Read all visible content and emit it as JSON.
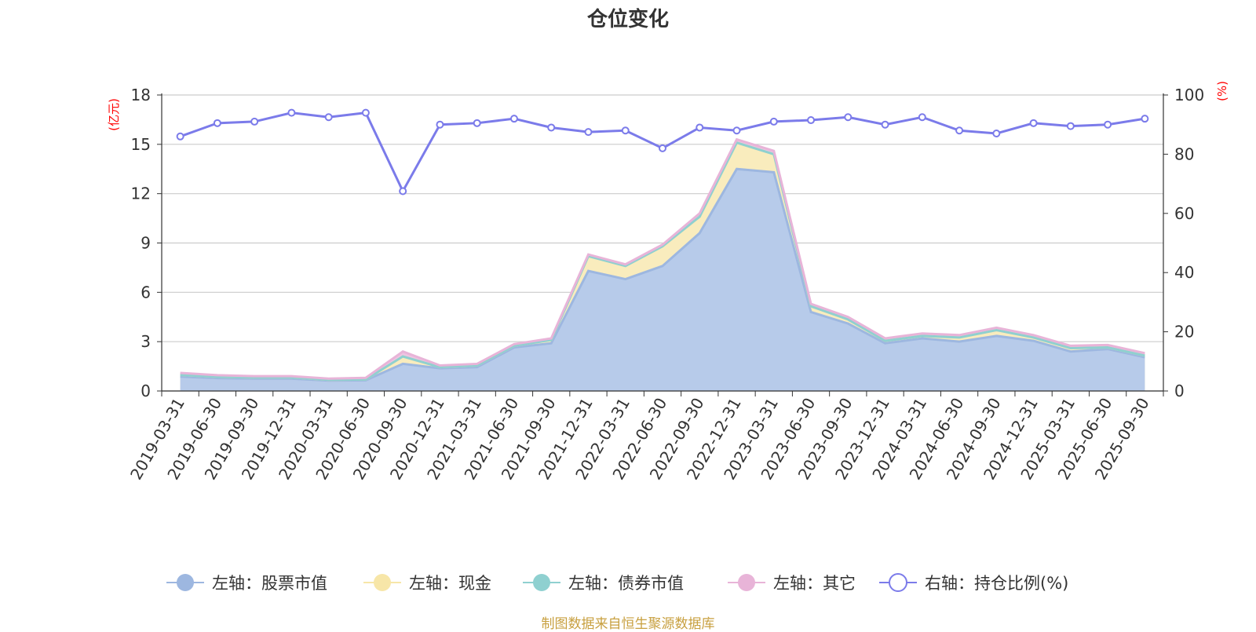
{
  "chart_data": {
    "type": "area",
    "title": "仓位变化",
    "left_axis_name": "(亿元)",
    "right_axis_name": "(%)",
    "left_ylim": [
      0,
      18
    ],
    "left_ticks": [
      0,
      3,
      6,
      9,
      12,
      15,
      18
    ],
    "right_ylim": [
      0,
      100
    ],
    "right_ticks": [
      0,
      20,
      40,
      60,
      80,
      100
    ],
    "categories": [
      "2019-03-31",
      "2019-06-30",
      "2019-09-30",
      "2019-12-31",
      "2020-03-31",
      "2020-06-30",
      "2020-09-30",
      "2020-12-31",
      "2021-03-31",
      "2021-06-30",
      "2021-09-30",
      "2021-12-31",
      "2022-03-31",
      "2022-06-30",
      "2022-09-30",
      "2022-12-31",
      "2023-03-31",
      "2023-06-30",
      "2023-09-30",
      "2023-12-31",
      "2024-03-31",
      "2024-06-30",
      "2024-09-30",
      "2024-12-31",
      "2025-03-31",
      "2025-06-30",
      "2025-09-30"
    ],
    "series": [
      {
        "name": "左轴：股票市值",
        "axis": "left",
        "stack": true,
        "color": "#9db7e0",
        "fill": "#b7cbea",
        "values": [
          0.88,
          0.78,
          0.75,
          0.75,
          0.63,
          0.65,
          1.65,
          1.38,
          1.45,
          2.65,
          2.9,
          7.3,
          6.8,
          7.6,
          9.6,
          13.5,
          13.3,
          4.8,
          4.1,
          2.9,
          3.2,
          3.0,
          3.35,
          3.05,
          2.4,
          2.55,
          2.05
        ]
      },
      {
        "name": "左轴：现金",
        "axis": "left",
        "stack": true,
        "color": "#f7e6a8",
        "fill": "#f9ecbd",
        "values": [
          0.1,
          0.08,
          0.07,
          0.07,
          0.05,
          0.05,
          0.45,
          0.07,
          0.1,
          0.1,
          0.2,
          0.9,
          0.8,
          1.2,
          1.0,
          1.6,
          1.1,
          0.35,
          0.25,
          0.15,
          0.15,
          0.25,
          0.35,
          0.2,
          0.2,
          0.1,
          0.1
        ]
      },
      {
        "name": "左轴：债券市值",
        "axis": "left",
        "stack": true,
        "color": "#8fd0d0",
        "fill": "#a8dcdc",
        "values": [
          0,
          0,
          0,
          0,
          0,
          0,
          0,
          0,
          0,
          0,
          0,
          0,
          0,
          0,
          0,
          0,
          0,
          0,
          0,
          0,
          0,
          0,
          0,
          0,
          0,
          0,
          0
        ]
      },
      {
        "name": "左轴：其它",
        "axis": "left",
        "stack": true,
        "color": "#e8b4d8",
        "fill": "#efc4e2",
        "values": [
          0.12,
          0.1,
          0.08,
          0.08,
          0.07,
          0.1,
          0.3,
          0.1,
          0.1,
          0.1,
          0.1,
          0.1,
          0.1,
          0.1,
          0.2,
          0.2,
          0.2,
          0.15,
          0.15,
          0.15,
          0.15,
          0.15,
          0.15,
          0.15,
          0.15,
          0.15,
          0.15
        ]
      },
      {
        "name": "右轴：持仓比例(%)",
        "axis": "right",
        "stack": false,
        "color": "#7b7bea",
        "values": [
          86,
          90.5,
          91,
          94,
          92.5,
          94,
          67.5,
          90,
          90.5,
          92,
          89,
          87.5,
          88,
          82,
          89,
          88,
          91,
          91.5,
          92.5,
          90,
          92.5,
          88,
          87,
          90.5,
          89.5,
          90,
          92
        ]
      }
    ],
    "legend_position": "bottom",
    "grid": true
  },
  "footer": {
    "source": "制图数据来自恒生聚源数据库"
  }
}
